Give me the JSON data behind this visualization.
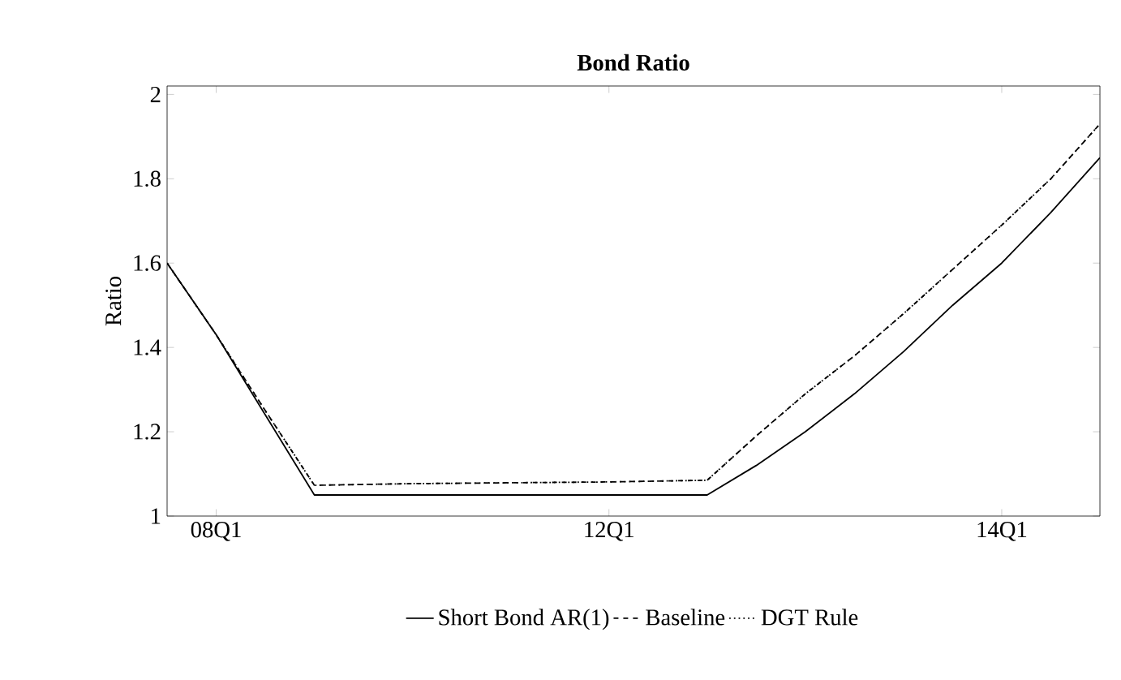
{
  "chart_data": {
    "type": "line",
    "title": "Bond Ratio",
    "ylabel": "Ratio",
    "categories": [
      null,
      "08Q1",
      null,
      null,
      null,
      null,
      null,
      null,
      null,
      "12Q1",
      null,
      null,
      null,
      null,
      null,
      null,
      null,
      "14Q1",
      null,
      null
    ],
    "ylim": [
      1,
      2.02
    ],
    "yticks": [
      1,
      1.2,
      1.4,
      1.6,
      1.8,
      2
    ],
    "grid": false,
    "legend": "bottom",
    "series": [
      {
        "name": "Short Bond AR(1)",
        "color": "#000000",
        "line_style": "solid",
        "values": [
          1.6,
          1.43,
          1.24,
          1.05,
          1.05,
          1.05,
          1.05,
          1.05,
          1.05,
          1.05,
          1.05,
          1.05,
          1.12,
          1.2,
          1.29,
          1.39,
          1.5,
          1.6,
          1.72,
          1.85
        ]
      },
      {
        "name": "Baseline",
        "color": "#000000",
        "line_style": "dashed",
        "values": [
          1.6,
          1.43,
          1.25,
          1.073,
          1.075,
          1.077,
          1.078,
          1.079,
          1.08,
          1.081,
          1.083,
          1.085,
          1.19,
          1.29,
          1.38,
          1.48,
          1.585,
          1.69,
          1.8,
          1.93
        ]
      },
      {
        "name": "DGT Rule",
        "color": "#000000",
        "line_style": "dotted",
        "values": [
          1.6,
          1.43,
          1.25,
          1.073,
          1.075,
          1.077,
          1.078,
          1.079,
          1.08,
          1.081,
          1.083,
          1.085,
          1.19,
          1.29,
          1.38,
          1.48,
          1.585,
          1.69,
          1.8,
          1.93
        ]
      }
    ]
  }
}
